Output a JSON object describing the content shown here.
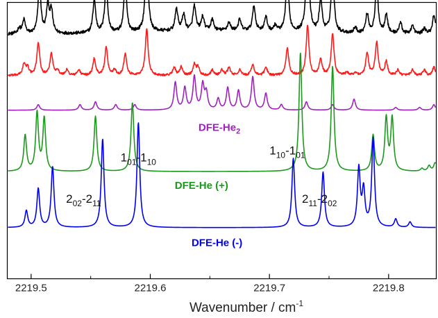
{
  "chart_data": {
    "type": "line",
    "title": "",
    "xlabel": "Wavenumber / cm",
    "xlabel_superscript": "-1",
    "ylabel": "",
    "xlim": [
      2219.48,
      2219.84
    ],
    "xticks": [
      "2219.5",
      "2219.6",
      "2219.7",
      "2219.8"
    ],
    "grid": false,
    "legend": "none",
    "peak_half_width": 0.0014,
    "series": [
      {
        "id": "observed-black",
        "color": "#000000",
        "baseline": 0.885,
        "noise": 0.006,
        "broad": 0.05,
        "peaks": [
          [
            2219.49,
            0.02
          ],
          [
            2219.494,
            0.05
          ],
          [
            2219.507,
            0.18
          ],
          [
            2219.514,
            0.1
          ],
          [
            2219.517,
            0.08
          ],
          [
            2219.553,
            0.12
          ],
          [
            2219.563,
            0.18
          ],
          [
            2219.579,
            0.18
          ],
          [
            2219.597,
            0.3
          ],
          [
            2219.622,
            0.08
          ],
          [
            2219.628,
            0.06
          ],
          [
            2219.637,
            0.09
          ],
          [
            2219.644,
            0.05
          ],
          [
            2219.652,
            0.04
          ],
          [
            2219.666,
            0.03
          ],
          [
            2219.675,
            0.04
          ],
          [
            2219.687,
            0.09
          ],
          [
            2219.697,
            0.05
          ],
          [
            2219.705,
            0.02
          ],
          [
            2219.715,
            0.2
          ],
          [
            2219.732,
            0.36
          ],
          [
            2219.743,
            0.12
          ],
          [
            2219.753,
            0.23
          ],
          [
            2219.772,
            0.02
          ],
          [
            2219.782,
            0.07
          ],
          [
            2219.79,
            0.18
          ],
          [
            2219.798,
            0.07
          ],
          [
            2219.81,
            0.04
          ],
          [
            2219.82,
            0.03
          ],
          [
            2219.83,
            0.02
          ],
          [
            2219.838,
            0.07
          ]
        ]
      },
      {
        "id": "fit-red",
        "color": "#ff1a1a",
        "baseline": 0.735,
        "noise": 0.004,
        "broad": 0.0,
        "peaks": [
          [
            2219.494,
            0.04
          ],
          [
            2219.497,
            0.03
          ],
          [
            2219.506,
            0.12
          ],
          [
            2219.517,
            0.08
          ],
          [
            2219.522,
            0.02
          ],
          [
            2219.53,
            0.02
          ],
          [
            2219.54,
            0.02
          ],
          [
            2219.553,
            0.06
          ],
          [
            2219.563,
            0.1
          ],
          [
            2219.57,
            0.02
          ],
          [
            2219.579,
            0.08
          ],
          [
            2219.597,
            0.17
          ],
          [
            2219.62,
            0.03
          ],
          [
            2219.626,
            0.03
          ],
          [
            2219.637,
            0.04
          ],
          [
            2219.64,
            0.03
          ],
          [
            2219.652,
            0.02
          ],
          [
            2219.66,
            0.02
          ],
          [
            2219.666,
            0.03
          ],
          [
            2219.675,
            0.02
          ],
          [
            2219.686,
            0.04
          ],
          [
            2219.697,
            0.03
          ],
          [
            2219.715,
            0.1
          ],
          [
            2219.732,
            0.18
          ],
          [
            2219.743,
            0.06
          ],
          [
            2219.753,
            0.15
          ],
          [
            2219.765,
            0.01
          ],
          [
            2219.772,
            0.01
          ],
          [
            2219.782,
            0.08
          ],
          [
            2219.79,
            0.12
          ],
          [
            2219.798,
            0.05
          ],
          [
            2219.808,
            0.02
          ],
          [
            2219.82,
            0.02
          ],
          [
            2219.83,
            0.02
          ],
          [
            2219.838,
            0.03
          ]
        ]
      },
      {
        "id": "dfe-he2",
        "color": "#a020c0",
        "baseline": 0.61,
        "noise": 0.0,
        "broad": 0.0,
        "peaks": [
          [
            2219.506,
            0.02
          ],
          [
            2219.541,
            0.02
          ],
          [
            2219.554,
            0.03
          ],
          [
            2219.571,
            0.02
          ],
          [
            2219.587,
            0.02
          ],
          [
            2219.621,
            0.1
          ],
          [
            2219.629,
            0.08
          ],
          [
            2219.637,
            0.12
          ],
          [
            2219.644,
            0.09
          ],
          [
            2219.647,
            0.06
          ],
          [
            2219.657,
            0.04
          ],
          [
            2219.665,
            0.08
          ],
          [
            2219.674,
            0.07
          ],
          [
            2219.686,
            0.12
          ],
          [
            2219.697,
            0.06
          ],
          [
            2219.71,
            0.02
          ],
          [
            2219.731,
            0.03
          ],
          [
            2219.753,
            0.02
          ],
          [
            2219.771,
            0.04
          ],
          [
            2219.806,
            0.01
          ],
          [
            2219.826,
            0.01
          ],
          [
            2219.838,
            0.02
          ]
        ]
      },
      {
        "id": "dfe-he-plus",
        "color": "#1a9a1a",
        "baseline": 0.388,
        "noise": 0.0,
        "broad": 0.0,
        "peaks": [
          [
            2219.495,
            0.13
          ],
          [
            2219.505,
            0.21
          ],
          [
            2219.511,
            0.19
          ],
          [
            2219.554,
            0.2
          ],
          [
            2219.585,
            0.25
          ],
          [
            2219.726,
            0.43
          ],
          [
            2219.753,
            0.38
          ],
          [
            2219.787,
            0.13
          ],
          [
            2219.798,
            0.19
          ],
          [
            2219.803,
            0.19
          ],
          [
            2219.828,
            0.01
          ],
          [
            2219.834,
            0.02
          ],
          [
            2219.839,
            0.03
          ]
        ]
      },
      {
        "id": "dfe-he-minus",
        "color": "#0000ee",
        "baseline": 0.185,
        "noise": 0.0,
        "broad": 0.0,
        "peaks": [
          [
            2219.496,
            0.06
          ],
          [
            2219.506,
            0.14
          ],
          [
            2219.518,
            0.22
          ],
          [
            2219.56,
            0.32
          ],
          [
            2219.59,
            0.38
          ],
          [
            2219.72,
            0.25
          ],
          [
            2219.745,
            0.2
          ],
          [
            2219.775,
            0.21
          ],
          [
            2219.779,
            0.13
          ],
          [
            2219.787,
            0.32
          ],
          [
            2219.806,
            0.03
          ],
          [
            2219.818,
            0.02
          ]
        ]
      }
    ],
    "labels": [
      {
        "id": "dfe-he2-label",
        "main": "DFE-He",
        "sub": "2",
        "rest": "",
        "x": 2219.658,
        "y": 0.535,
        "color": "#a020c0"
      },
      {
        "id": "dfe-he-plus-label",
        "main": "DFE-He (+)",
        "sub": "",
        "rest": "",
        "x": 2219.643,
        "y": 0.325,
        "color": "#1a9a1a"
      },
      {
        "id": "dfe-he-minus-label",
        "main": "DFE-He (-)",
        "sub": "",
        "rest": "",
        "x": 2219.656,
        "y": 0.118,
        "color": "#0000ee"
      }
    ],
    "transitions": [
      {
        "id": "trans-101-110",
        "text": [
          [
            "1",
            ""
          ],
          [
            "01",
            "sub"
          ],
          [
            "-1",
            ""
          ],
          [
            "10",
            "sub"
          ]
        ],
        "x": 2219.59,
        "y": 0.425
      },
      {
        "id": "trans-110-101",
        "text": [
          [
            "1",
            ""
          ],
          [
            "10",
            "sub"
          ],
          [
            "-1",
            ""
          ],
          [
            "01",
            "sub"
          ]
        ],
        "x": 2219.715,
        "y": 0.45
      },
      {
        "id": "trans-202-211",
        "text": [
          [
            "2",
            ""
          ],
          [
            "02",
            "sub"
          ],
          [
            "-2",
            ""
          ],
          [
            "11",
            "sub"
          ]
        ],
        "x": 2219.544,
        "y": 0.275
      },
      {
        "id": "trans-211-202",
        "text": [
          [
            "2",
            ""
          ],
          [
            "11",
            "sub"
          ],
          [
            "-2",
            ""
          ],
          [
            "02",
            "sub"
          ]
        ],
        "x": 2219.742,
        "y": 0.275
      }
    ]
  }
}
